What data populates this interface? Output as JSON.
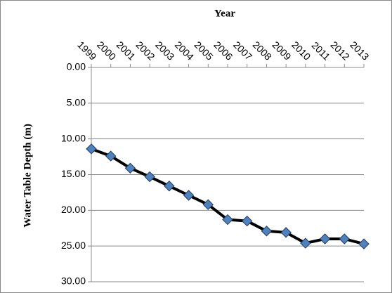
{
  "chart_data": {
    "type": "line",
    "x_label": "Year",
    "y_label": "Water Table Depth (m)",
    "categories": [
      "1999",
      "2000",
      "2001",
      "2002",
      "2003",
      "2004",
      "2005",
      "2006",
      "2007",
      "2008",
      "2009",
      "2010",
      "2011",
      "2012",
      "2013"
    ],
    "series": [
      {
        "line_color": "#000000",
        "color": "#4f81bd",
        "values": [
          11.4,
          12.4,
          14.1,
          15.3,
          16.6,
          17.9,
          19.2,
          21.3,
          21.5,
          22.9,
          23.1,
          24.6,
          24.0,
          24.0,
          24.7
        ]
      }
    ],
    "ylim": [
      0,
      30
    ],
    "yticks": [
      {
        "value": 0,
        "label": "0.00"
      },
      {
        "value": 5,
        "label": "5.00"
      },
      {
        "value": 10,
        "label": "10.00"
      },
      {
        "value": 15,
        "label": "15.00"
      },
      {
        "value": 20,
        "label": "20.00"
      },
      {
        "value": 25,
        "label": "25.00"
      },
      {
        "value": 30,
        "label": "30.00"
      }
    ],
    "y_inverted": true,
    "x_axis_position": "top",
    "grid": true
  }
}
